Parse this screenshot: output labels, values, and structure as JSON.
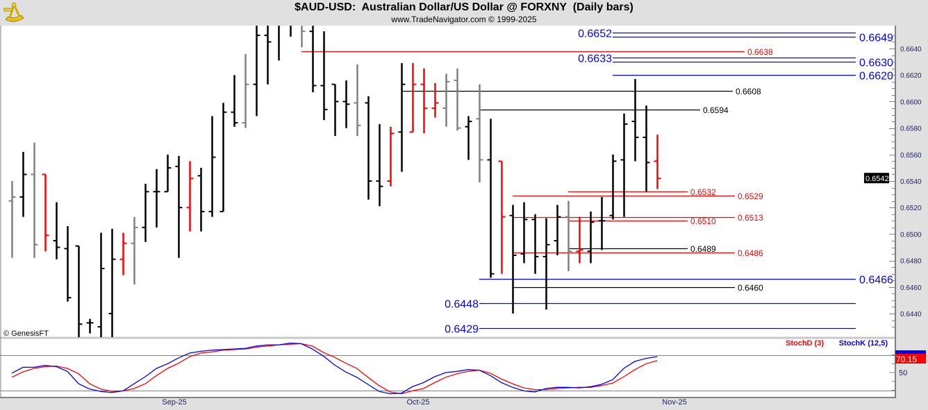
{
  "header": {
    "title": "$AUD-USD:  Australian Dollar/US Dollar @ FORXNY  (Daily bars)",
    "subtitle": "www.TradeNavigator.com © 1999-2025"
  },
  "copyright": "© GenesisFT",
  "colors": {
    "up_bar": "#000000",
    "down_bar": "#ff0000",
    "neutral_bar": "#808080",
    "blue_level": "#0000ff",
    "red_level": "#ff0000",
    "black_level": "#000000",
    "stochK": "#0000ff",
    "stochD": "#ff0000"
  },
  "chart_data": [
    {
      "type": "ohlc",
      "name": "price",
      "ylim": [
        0.643,
        0.6657
      ],
      "y_ticks": [
        "0.6640",
        "0.6620",
        "0.6600",
        "0.6580",
        "0.6560",
        "0.6540",
        "0.6520",
        "0.6500",
        "0.6480",
        "0.6460",
        "0.6440"
      ],
      "x_tick_labels": [
        "Sep-25",
        "Oct-25",
        "Nov-25"
      ],
      "last_price": "0.6542",
      "bar_fields": [
        "open",
        "high",
        "low",
        "close",
        "color"
      ],
      "bars": [
        [
          0.6525,
          0.654,
          0.6482,
          0.6528,
          "gray"
        ],
        [
          0.6528,
          0.6562,
          0.6513,
          0.6545,
          "black"
        ],
        [
          0.6545,
          0.6569,
          0.6482,
          0.6492,
          "gray"
        ],
        [
          0.6545,
          0.6545,
          0.6487,
          0.6499,
          "red"
        ],
        [
          0.6495,
          0.6524,
          0.6481,
          0.649,
          "black"
        ],
        [
          0.6489,
          0.6506,
          0.6449,
          0.6452,
          "black"
        ],
        [
          0.6491,
          0.6491,
          0.642,
          0.6432,
          "black"
        ],
        [
          0.6433,
          0.6436,
          0.6425,
          0.6433,
          "black"
        ],
        [
          0.643,
          0.6501,
          0.642,
          0.6474,
          "black"
        ],
        [
          0.644,
          0.6504,
          0.6422,
          0.6481,
          "black"
        ],
        [
          0.6481,
          0.6501,
          0.6469,
          0.6493,
          "red"
        ],
        [
          0.6493,
          0.6513,
          0.6462,
          0.6505,
          "gray"
        ],
        [
          0.6505,
          0.6538,
          0.6494,
          0.6532,
          "black"
        ],
        [
          0.6532,
          0.6549,
          0.6505,
          0.6532,
          "black"
        ],
        [
          0.6532,
          0.656,
          0.6532,
          0.655,
          "black"
        ],
        [
          0.6551,
          0.6559,
          0.6482,
          0.652,
          "black"
        ],
        [
          0.652,
          0.6555,
          0.6502,
          0.6542,
          "red"
        ],
        [
          0.6544,
          0.655,
          0.6502,
          0.6517,
          "black"
        ],
        [
          0.6517,
          0.6589,
          0.6513,
          0.6558,
          "black"
        ],
        [
          0.6517,
          0.6599,
          0.6517,
          0.6592,
          "black"
        ],
        [
          0.6592,
          0.662,
          0.6581,
          0.6584,
          "black"
        ],
        [
          0.6584,
          0.6636,
          0.658,
          0.6613,
          "gray"
        ],
        [
          0.6613,
          0.667,
          0.6589,
          0.665,
          "black"
        ],
        [
          0.665,
          0.668,
          0.6613,
          0.6645,
          "black"
        ],
        [
          0.666,
          0.6685,
          0.6631,
          0.6665,
          "black"
        ],
        [
          0.667,
          0.6685,
          0.6649,
          0.6668,
          "black"
        ],
        [
          0.6665,
          0.6675,
          0.6641,
          0.6653,
          "gray"
        ],
        [
          0.6653,
          0.667,
          0.6607,
          0.6612,
          "black"
        ],
        [
          0.6612,
          0.6653,
          0.6586,
          0.6594,
          "black"
        ],
        [
          0.6613,
          0.6613,
          0.6574,
          0.66,
          "black"
        ],
        [
          0.66,
          0.6616,
          0.658,
          0.6598,
          "black"
        ],
        [
          0.6599,
          0.6628,
          0.6574,
          0.6582,
          "gray"
        ],
        [
          0.6599,
          0.6604,
          0.6526,
          0.654,
          "black"
        ],
        [
          0.654,
          0.6583,
          0.6521,
          0.6536,
          "black"
        ],
        [
          0.654,
          0.6581,
          0.6536,
          0.6576,
          "red"
        ],
        [
          0.6577,
          0.6629,
          0.6547,
          0.6613,
          "black"
        ],
        [
          0.6577,
          0.6629,
          0.6577,
          0.6613,
          "red"
        ],
        [
          0.6613,
          0.6625,
          0.6576,
          0.6595,
          "red"
        ],
        [
          0.6595,
          0.6614,
          0.6588,
          0.6599,
          "red"
        ],
        [
          0.6595,
          0.6621,
          0.6581,
          0.6615,
          "gray"
        ],
        [
          0.6616,
          0.6625,
          0.6578,
          0.658,
          "gray"
        ],
        [
          0.6581,
          0.6589,
          0.6556,
          0.6585,
          "black"
        ],
        [
          0.6587,
          0.6613,
          0.6539,
          0.6556,
          "gray"
        ],
        [
          0.6556,
          0.6587,
          0.6467,
          0.647,
          "black"
        ],
        [
          0.6555,
          0.6555,
          0.647,
          0.6513,
          "red"
        ],
        [
          0.6514,
          0.6522,
          0.644,
          0.6484,
          "black"
        ],
        [
          0.6485,
          0.6524,
          0.6478,
          0.6511,
          "black"
        ],
        [
          0.6511,
          0.6515,
          0.647,
          0.6483,
          "black"
        ],
        [
          0.6483,
          0.6512,
          0.6443,
          0.6492,
          "black"
        ],
        [
          0.6495,
          0.6522,
          0.6484,
          0.6513,
          "black"
        ],
        [
          0.6513,
          0.6525,
          0.6472,
          0.6487,
          "gray"
        ],
        [
          0.6487,
          0.6513,
          0.6478,
          0.6488,
          "red"
        ],
        [
          0.6487,
          0.6517,
          0.6478,
          0.6509,
          "black"
        ],
        [
          0.651,
          0.6528,
          0.6488,
          0.651,
          "black"
        ],
        [
          0.6514,
          0.656,
          0.6511,
          0.6555,
          "black"
        ],
        [
          0.6556,
          0.6591,
          0.6513,
          0.6583,
          "black"
        ],
        [
          0.6585,
          0.6617,
          0.6555,
          0.6573,
          "black"
        ],
        [
          0.6573,
          0.6597,
          0.6532,
          0.6554,
          "black"
        ],
        [
          0.6555,
          0.6575,
          0.6534,
          0.6542,
          "red"
        ]
      ],
      "levels": [
        {
          "price": 0.6652,
          "label": "0.6652",
          "color": "blue",
          "label_side": "left"
        },
        {
          "price": 0.6649,
          "label": "0.6649",
          "color": "blue",
          "label_side": "right"
        },
        {
          "price": 0.6638,
          "label": "0.6638",
          "color": "red",
          "label_side": "right"
        },
        {
          "price": 0.6633,
          "label": "0.6633",
          "color": "blue",
          "label_side": "left"
        },
        {
          "price": 0.663,
          "label": "0.6630",
          "color": "blue",
          "label_side": "right"
        },
        {
          "price": 0.662,
          "label": "0.6620",
          "color": "blue",
          "label_side": "right"
        },
        {
          "price": 0.6608,
          "label": "0.6608",
          "color": "black",
          "label_side": "right"
        },
        {
          "price": 0.6594,
          "label": "0.6594",
          "color": "black",
          "label_side": "right"
        },
        {
          "price": 0.6532,
          "label": "0.6532",
          "color": "red",
          "label_side": "right"
        },
        {
          "price": 0.6529,
          "label": "0.6529",
          "color": "red",
          "label_side": "right"
        },
        {
          "price": 0.6513,
          "label": "0.6513",
          "color": "red",
          "label_side": "right"
        },
        {
          "price": 0.651,
          "label": "0.6510",
          "color": "red",
          "label_side": "right"
        },
        {
          "price": 0.6489,
          "label": "0.6489",
          "color": "black",
          "label_side": "right"
        },
        {
          "price": 0.6486,
          "label": "0.6486",
          "color": "red",
          "label_side": "right"
        },
        {
          "price": 0.6466,
          "label": "0.6466",
          "color": "blue",
          "label_side": "right"
        },
        {
          "price": 0.646,
          "label": "0.6460",
          "color": "black",
          "label_side": "right"
        },
        {
          "price": 0.6448,
          "label": "0.6448",
          "color": "blue",
          "label_side": "left"
        },
        {
          "price": 0.6429,
          "label": "0.6429",
          "color": "blue",
          "label_side": "left"
        }
      ]
    },
    {
      "type": "line",
      "name": "stochastic",
      "ylim": [
        0,
        100
      ],
      "y_ticks": [
        "50"
      ],
      "gridlines": [
        20,
        80
      ],
      "series": [
        {
          "name": "StochD (3)",
          "color": "#ff0000",
          "last_label": "70.15",
          "values": [
            42,
            51,
            57,
            60,
            61,
            57,
            48,
            31,
            22,
            18,
            19,
            23,
            31,
            45,
            57,
            66,
            77,
            83,
            85,
            88,
            89,
            90,
            93,
            95,
            97,
            98,
            99,
            95,
            84,
            76,
            66,
            57,
            42,
            28,
            17,
            14,
            19,
            23,
            33,
            42,
            48,
            52,
            54,
            49,
            39,
            31,
            24,
            21,
            21,
            23,
            24,
            25,
            25,
            28,
            32,
            43,
            55,
            65,
            70.15
          ]
        },
        {
          "name": "StochK (12,5)",
          "color": "#0000ff",
          "values": [
            49,
            59,
            59,
            62,
            60,
            52,
            31,
            22,
            18,
            16,
            19,
            31,
            43,
            57,
            65,
            75,
            83,
            86,
            88,
            89,
            90,
            91,
            95,
            97,
            97,
            100,
            99,
            90,
            78,
            63,
            51,
            42,
            30,
            18,
            14,
            15,
            26,
            33,
            43,
            50,
            52,
            55,
            54,
            45,
            33,
            25,
            19,
            17,
            23,
            25,
            25,
            24,
            26,
            30,
            38,
            57,
            69,
            74,
            77
          ]
        }
      ]
    }
  ]
}
